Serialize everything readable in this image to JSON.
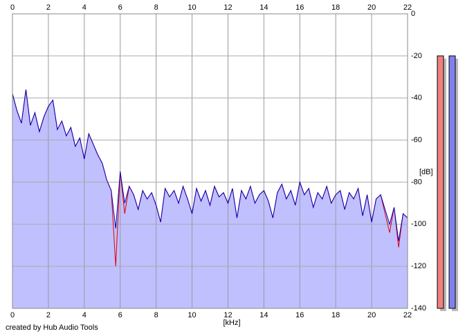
{
  "chart_data": {
    "type": "spectrum",
    "x_label": "[kHz]",
    "y_label": "[dB]",
    "footer": "created by Hub Audio Tools",
    "xlim": [
      0,
      22
    ],
    "ylim": [
      -140,
      0
    ],
    "xticks": [
      0,
      2,
      4,
      6,
      8,
      10,
      12,
      14,
      16,
      18,
      20,
      22
    ],
    "yticks": [
      0,
      -20,
      -40,
      -60,
      -80,
      -100,
      -120,
      -140
    ],
    "grid": true,
    "fill_color": "#c0c0ff",
    "x": [
      0,
      0.25,
      0.5,
      0.75,
      1,
      1.25,
      1.5,
      1.75,
      2,
      2.25,
      2.5,
      2.75,
      3,
      3.25,
      3.5,
      3.75,
      4,
      4.25,
      4.5,
      4.75,
      5,
      5.25,
      5.5,
      5.75,
      6,
      6.25,
      6.5,
      6.75,
      7,
      7.25,
      7.5,
      7.75,
      8,
      8.25,
      8.5,
      8.75,
      9,
      9.25,
      9.5,
      9.75,
      10,
      10.25,
      10.5,
      10.75,
      11,
      11.25,
      11.5,
      11.75,
      12,
      12.25,
      12.5,
      12.75,
      13,
      13.25,
      13.5,
      13.75,
      14,
      14.25,
      14.5,
      14.75,
      15,
      15.25,
      15.5,
      15.75,
      16,
      16.25,
      16.5,
      16.75,
      17,
      17.25,
      17.5,
      17.75,
      18,
      18.25,
      18.5,
      18.75,
      19,
      19.25,
      19.5,
      19.75,
      20,
      20.25,
      20.5,
      20.75,
      21,
      21.25,
      21.5,
      21.75,
      22
    ],
    "series": [
      {
        "color": "#e00000",
        "values": [
          -38,
          -46,
          -52,
          -36,
          -53,
          -47,
          -56,
          -49,
          -44,
          -41,
          -55,
          -51,
          -58,
          -54,
          -63,
          -59,
          -69,
          -57,
          -62,
          -67,
          -71,
          -79,
          -84,
          -120,
          -75,
          -95,
          -82,
          -86,
          -93,
          -84,
          -88,
          -85,
          -91,
          -99,
          -83,
          -87,
          -84,
          -90,
          -82,
          -88,
          -95,
          -83,
          -89,
          -84,
          -91,
          -82,
          -87,
          -85,
          -90,
          -83,
          -97,
          -84,
          -88,
          -82,
          -90,
          -86,
          -84,
          -89,
          -97,
          -85,
          -81,
          -88,
          -84,
          -91,
          -80,
          -86,
          -83,
          -92,
          -85,
          -88,
          -82,
          -90,
          -86,
          -84,
          -93,
          -85,
          -88,
          -83,
          -96,
          -86,
          -99,
          -88,
          -86,
          -95,
          -104,
          -92,
          -111,
          -95,
          -97
        ]
      },
      {
        "color": "#0000c0",
        "values": [
          -38,
          -46,
          -52,
          -36,
          -53,
          -47,
          -56,
          -49,
          -44,
          -41,
          -55,
          -51,
          -58,
          -54,
          -63,
          -59,
          -69,
          -57,
          -62,
          -67,
          -71,
          -79,
          -84,
          -102,
          -75,
          -90,
          -82,
          -86,
          -93,
          -84,
          -88,
          -85,
          -91,
          -99,
          -83,
          -87,
          -84,
          -90,
          -82,
          -88,
          -95,
          -83,
          -89,
          -84,
          -91,
          -82,
          -87,
          -85,
          -90,
          -83,
          -97,
          -84,
          -88,
          -82,
          -90,
          -86,
          -84,
          -89,
          -97,
          -85,
          -81,
          -88,
          -84,
          -91,
          -80,
          -86,
          -83,
          -92,
          -85,
          -88,
          -82,
          -90,
          -86,
          -84,
          -93,
          -85,
          -88,
          -83,
          -96,
          -86,
          -99,
          -88,
          -86,
          -93,
          -100,
          -92,
          -108,
          -95,
          -97
        ]
      }
    ],
    "meters": [
      {
        "color": "#f08080",
        "value": -20
      },
      {
        "color": "#8080f0",
        "value": -20
      }
    ]
  }
}
